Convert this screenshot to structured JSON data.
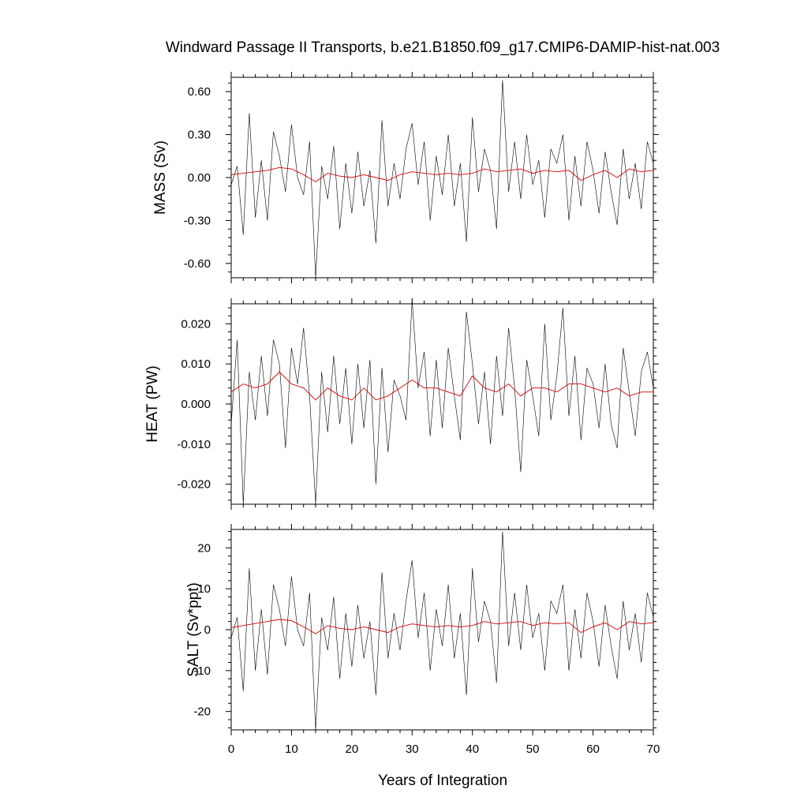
{
  "title": "Windward Passage II Transports, b.e21.B1850.f09_g17.CMIP6-DAMIP-hist-nat.003",
  "chart_data": [
    {
      "type": "line",
      "ylabel": "MASS (Sv)",
      "xlim": [
        0,
        70
      ],
      "ylim": [
        -0.7,
        0.7
      ],
      "yticks": [
        -0.6,
        -0.3,
        0.0,
        0.3,
        0.6
      ],
      "ytick_labels": [
        "-0.60",
        "-0.30",
        "0.00",
        "0.30",
        "0.60"
      ],
      "series": [
        {
          "role": "raw",
          "color": "#000000",
          "x": [
            0,
            1,
            2,
            3,
            4,
            5,
            6,
            7,
            8,
            9,
            10,
            11,
            12,
            13,
            14,
            15,
            16,
            17,
            18,
            19,
            20,
            21,
            22,
            23,
            24,
            25,
            26,
            27,
            28,
            29,
            30,
            31,
            32,
            33,
            34,
            35,
            36,
            37,
            38,
            39,
            40,
            41,
            42,
            43,
            44,
            45,
            46,
            47,
            48,
            49,
            50,
            51,
            52,
            53,
            54,
            55,
            56,
            57,
            58,
            59,
            60,
            61,
            62,
            63,
            64,
            65,
            66,
            67,
            68,
            69,
            70
          ],
          "values": [
            -0.05,
            0.08,
            -0.4,
            0.45,
            -0.28,
            0.12,
            -0.3,
            0.32,
            0.15,
            -0.1,
            0.37,
            0.0,
            -0.12,
            0.25,
            -0.7,
            0.08,
            -0.15,
            0.22,
            -0.36,
            0.1,
            -0.25,
            0.18,
            -0.2,
            0.05,
            -0.46,
            0.4,
            -0.2,
            0.1,
            -0.15,
            0.2,
            0.38,
            -0.05,
            0.25,
            -0.3,
            0.15,
            -0.12,
            0.3,
            -0.2,
            0.1,
            -0.45,
            0.42,
            -0.1,
            0.2,
            0.05,
            -0.36,
            0.68,
            -0.1,
            0.25,
            -0.15,
            0.3,
            -0.05,
            0.12,
            -0.28,
            0.2,
            0.1,
            0.3,
            -0.3,
            0.15,
            -0.2,
            0.25,
            0.05,
            -0.25,
            0.18,
            -0.1,
            -0.33,
            0.2,
            -0.15,
            0.1,
            -0.22,
            0.25,
            0.1
          ]
        },
        {
          "role": "smoothed",
          "color": "#d40000",
          "x": [
            0,
            2,
            4,
            6,
            8,
            10,
            12,
            14,
            16,
            18,
            20,
            22,
            24,
            26,
            28,
            30,
            32,
            34,
            36,
            38,
            40,
            42,
            44,
            46,
            48,
            50,
            52,
            54,
            56,
            58,
            60,
            62,
            64,
            66,
            68,
            70
          ],
          "values": [
            0.02,
            0.03,
            0.04,
            0.05,
            0.07,
            0.06,
            0.02,
            -0.03,
            0.03,
            0.01,
            0.0,
            0.02,
            0.0,
            -0.02,
            0.02,
            0.04,
            0.03,
            0.02,
            0.03,
            0.02,
            0.03,
            0.06,
            0.04,
            0.05,
            0.06,
            0.03,
            0.05,
            0.04,
            0.05,
            -0.02,
            0.02,
            0.05,
            0.0,
            0.06,
            0.04,
            0.05
          ]
        }
      ]
    },
    {
      "type": "line",
      "ylabel": "HEAT (PW)",
      "xlim": [
        0,
        70
      ],
      "ylim": [
        -0.025,
        0.025
      ],
      "yticks": [
        -0.02,
        -0.01,
        0.0,
        0.01,
        0.02
      ],
      "ytick_labels": [
        "-0.020",
        "-0.010",
        "0.000",
        "0.010",
        "0.020"
      ],
      "series": [
        {
          "role": "raw",
          "color": "#000000",
          "x": [
            0,
            1,
            2,
            3,
            4,
            5,
            6,
            7,
            8,
            9,
            10,
            11,
            12,
            13,
            14,
            15,
            16,
            17,
            18,
            19,
            20,
            21,
            22,
            23,
            24,
            25,
            26,
            27,
            28,
            29,
            30,
            31,
            32,
            33,
            34,
            35,
            36,
            37,
            38,
            39,
            40,
            41,
            42,
            43,
            44,
            45,
            46,
            47,
            48,
            49,
            50,
            51,
            52,
            53,
            54,
            55,
            56,
            57,
            58,
            59,
            60,
            61,
            62,
            63,
            64,
            65,
            66,
            67,
            68,
            69,
            70
          ],
          "values": [
            -0.005,
            0.016,
            -0.025,
            0.008,
            -0.004,
            0.012,
            -0.003,
            0.016,
            0.01,
            -0.011,
            0.014,
            0.005,
            0.019,
            0.002,
            -0.025,
            0.008,
            -0.007,
            0.012,
            -0.005,
            0.009,
            -0.01,
            0.01,
            -0.006,
            0.011,
            -0.02,
            0.009,
            -0.012,
            0.006,
            0.002,
            -0.004,
            0.026,
            0.004,
            0.013,
            -0.008,
            0.011,
            -0.006,
            0.014,
            0.002,
            -0.009,
            0.023,
            0.01,
            -0.005,
            0.008,
            -0.01,
            0.012,
            -0.003,
            0.019,
            0.004,
            -0.017,
            0.011,
            0.002,
            -0.008,
            0.02,
            -0.004,
            0.007,
            0.024,
            -0.003,
            0.012,
            -0.009,
            0.009,
            0.005,
            -0.006,
            0.01,
            -0.005,
            -0.011,
            0.014,
            0.003,
            -0.008,
            0.008,
            0.013,
            0.004
          ]
        },
        {
          "role": "smoothed",
          "color": "#d40000",
          "x": [
            0,
            2,
            4,
            6,
            8,
            10,
            12,
            14,
            16,
            18,
            20,
            22,
            24,
            26,
            28,
            30,
            32,
            34,
            36,
            38,
            40,
            42,
            44,
            46,
            48,
            50,
            52,
            54,
            56,
            58,
            60,
            62,
            64,
            66,
            68,
            70
          ],
          "values": [
            0.003,
            0.005,
            0.004,
            0.005,
            0.008,
            0.005,
            0.004,
            0.001,
            0.004,
            0.002,
            0.001,
            0.004,
            0.001,
            0.002,
            0.004,
            0.006,
            0.004,
            0.004,
            0.003,
            0.002,
            0.007,
            0.004,
            0.003,
            0.005,
            0.002,
            0.004,
            0.004,
            0.003,
            0.005,
            0.005,
            0.004,
            0.003,
            0.004,
            0.002,
            0.003,
            0.003
          ]
        }
      ]
    },
    {
      "type": "line",
      "ylabel": "SALT (Sv*ppt)",
      "xlabel": "Years of Integration",
      "xlim": [
        0,
        70
      ],
      "ylim": [
        -24.5,
        24.5
      ],
      "xticks": [
        0,
        10,
        20,
        30,
        40,
        50,
        60,
        70
      ],
      "xtick_labels": [
        "0",
        "10",
        "20",
        "30",
        "40",
        "50",
        "60",
        "70"
      ],
      "yticks": [
        -20,
        -10,
        0,
        10,
        20
      ],
      "ytick_labels": [
        "-20",
        "-10",
        "0",
        "10",
        "20"
      ],
      "series": [
        {
          "role": "raw",
          "color": "#000000",
          "x": [
            0,
            1,
            2,
            3,
            4,
            5,
            6,
            7,
            8,
            9,
            10,
            11,
            12,
            13,
            14,
            15,
            16,
            17,
            18,
            19,
            20,
            21,
            22,
            23,
            24,
            25,
            26,
            27,
            28,
            29,
            30,
            31,
            32,
            33,
            34,
            35,
            36,
            37,
            38,
            39,
            40,
            41,
            42,
            43,
            44,
            45,
            46,
            47,
            48,
            49,
            50,
            51,
            52,
            53,
            54,
            55,
            56,
            57,
            58,
            59,
            60,
            61,
            62,
            63,
            64,
            65,
            66,
            67,
            68,
            69,
            70
          ],
          "values": [
            -2,
            3,
            -15,
            15,
            -10,
            5,
            -11,
            11,
            5,
            -4,
            13,
            0,
            -4,
            9,
            -24.5,
            3,
            -5,
            8,
            -12,
            4,
            -9,
            6,
            -7,
            2,
            -16,
            14,
            -7,
            4,
            -5,
            7,
            17,
            -2,
            9,
            -10,
            5,
            -4,
            11,
            -7,
            4,
            -16,
            15,
            -3,
            7,
            2,
            -13,
            24,
            -4,
            9,
            -5,
            11,
            -2,
            4,
            -10,
            7,
            4,
            11,
            -10,
            5,
            -7,
            9,
            2,
            -9,
            6,
            -4,
            -12,
            7,
            -5,
            4,
            -8,
            9,
            3
          ]
        },
        {
          "role": "smoothed",
          "color": "#d40000",
          "x": [
            0,
            2,
            4,
            6,
            8,
            10,
            12,
            14,
            16,
            18,
            20,
            22,
            24,
            26,
            28,
            30,
            32,
            34,
            36,
            38,
            40,
            42,
            44,
            46,
            48,
            50,
            52,
            54,
            56,
            58,
            60,
            62,
            64,
            66,
            68,
            70
          ],
          "values": [
            0.5,
            1.0,
            1.5,
            2.0,
            2.5,
            2.2,
            0.7,
            -1.0,
            1.0,
            0.3,
            0.0,
            0.7,
            0.0,
            -0.7,
            0.7,
            1.4,
            1.0,
            0.7,
            1.0,
            0.7,
            1.0,
            2.0,
            1.4,
            1.7,
            2.0,
            1.0,
            1.7,
            1.4,
            1.7,
            -0.7,
            0.7,
            1.7,
            0.0,
            2.0,
            1.4,
            1.7
          ]
        }
      ]
    }
  ]
}
